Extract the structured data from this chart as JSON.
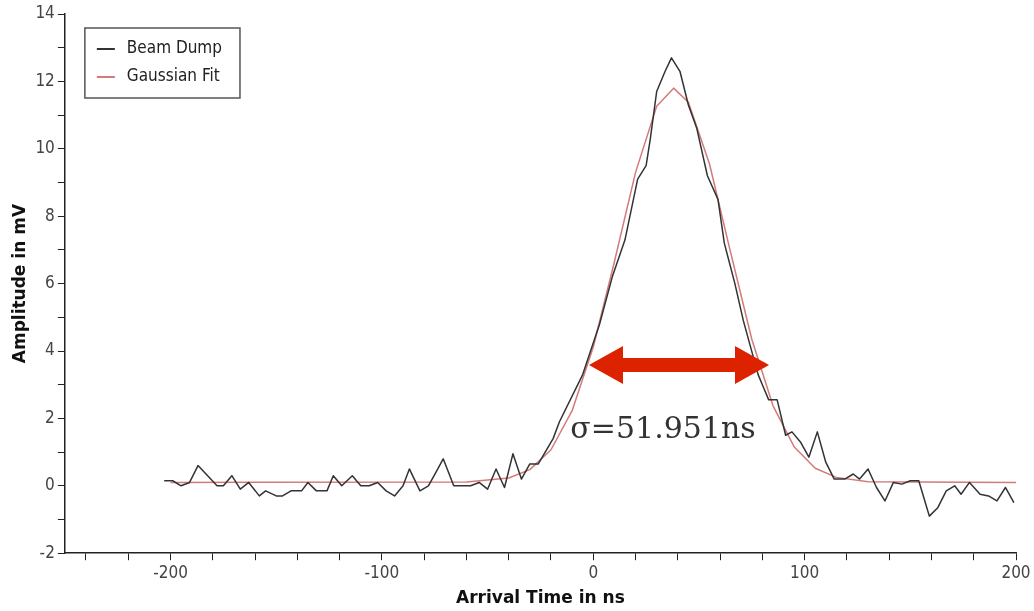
{
  "chart_data": {
    "type": "line",
    "xlabel": "Arrival Time in ns",
    "ylabel": "Amplitude in mV",
    "xlim": [
      -250,
      200
    ],
    "xticks": [
      {
        "value": -240,
        "label": null
      },
      {
        "value": -220,
        "label": null
      },
      -200,
      {
        "value": -180,
        "label": null
      },
      {
        "value": -160,
        "label": null
      },
      {
        "value": -140,
        "label": null
      },
      {
        "value": -120,
        "label": null
      },
      -100,
      {
        "value": -80,
        "label": null
      },
      {
        "value": -60,
        "label": null
      },
      {
        "value": -40,
        "label": null
      },
      {
        "value": -20,
        "label": null
      },
      0,
      {
        "value": 20,
        "label": null
      },
      {
        "value": 40,
        "label": null
      },
      {
        "value": 60,
        "label": null
      },
      {
        "value": 80,
        "label": null
      },
      100,
      {
        "value": 120,
        "label": null
      },
      {
        "value": 140,
        "label": null
      },
      {
        "value": 160,
        "label": null
      },
      {
        "value": 180,
        "label": null
      },
      200
    ],
    "ylim": [
      -2,
      14
    ],
    "yticks": [
      -2,
      {
        "value": -1,
        "label": null
      },
      0,
      {
        "value": 1,
        "label": null
      },
      2,
      {
        "value": 3,
        "label": null
      },
      4,
      {
        "value": 5,
        "label": null
      },
      6,
      {
        "value": 7,
        "label": null
      },
      8,
      {
        "value": 9,
        "label": null
      },
      10,
      {
        "value": 11,
        "label": null
      },
      12,
      {
        "value": 13,
        "label": null
      },
      14
    ],
    "grid": false,
    "legend": "top left",
    "marker": "none",
    "line_style": "solid",
    "series": [
      {
        "name": "Beam Dump",
        "color": "#333333",
        "x": [
          -203,
          -199,
          -195,
          -191,
          -187,
          -178,
          -175,
          -171,
          -167,
          -163,
          -158,
          -155,
          -150,
          -147,
          -143,
          -138,
          -135,
          -131,
          -126,
          -123,
          -119,
          -114,
          -110,
          -106,
          -102,
          -98,
          -94,
          -90,
          -87,
          -82,
          -78,
          -74,
          -71,
          -66,
          -58,
          -54,
          -50,
          -46,
          -42,
          -38,
          -34,
          -30,
          -26,
          -19,
          -16,
          -5,
          3,
          9,
          15,
          21,
          25,
          27,
          30,
          34,
          37,
          41,
          45,
          49,
          54,
          59,
          62,
          67,
          71,
          78,
          83,
          87,
          91,
          94,
          98,
          102,
          106,
          110,
          114,
          119,
          123,
          126,
          130,
          134,
          138,
          142,
          146,
          150,
          154,
          159,
          163,
          167,
          171,
          174,
          178,
          183,
          187,
          191,
          195,
          199
        ],
        "values": [
          0.15,
          0.15,
          0,
          0.1,
          0.6,
          0,
          0,
          0.3,
          -0.1,
          0.1,
          -0.3,
          -0.15,
          -0.3,
          -0.3,
          -0.15,
          -0.15,
          0.1,
          -0.15,
          -0.15,
          0.3,
          0,
          0.3,
          0,
          0,
          0.1,
          -0.15,
          -0.3,
          0,
          0.5,
          -0.15,
          0,
          0.45,
          0.8,
          0,
          0,
          0.1,
          -0.1,
          0.5,
          -0.05,
          0.95,
          0.2,
          0.65,
          0.65,
          1.4,
          1.9,
          3.3,
          4.8,
          6.2,
          7.3,
          9.1,
          9.5,
          10.3,
          11.7,
          12.3,
          12.7,
          12.3,
          11.3,
          10.6,
          9.2,
          8.5,
          7.2,
          6,
          4.9,
          3.3,
          2.55,
          2.55,
          1.5,
          1.6,
          1.3,
          0.85,
          1.6,
          0.7,
          0.2,
          0.2,
          0.35,
          0.2,
          0.5,
          -0.05,
          -0.45,
          0.1,
          0.05,
          0.15,
          0.15,
          -0.9,
          -0.65,
          -0.15,
          0,
          -0.25,
          0.1,
          -0.25,
          -0.3,
          -0.45,
          -0.05,
          -0.5
        ]
      },
      {
        "name": "Gaussian Fit",
        "color": "#d47a7a",
        "x": [
          -200,
          -60,
          -40,
          -30,
          -20,
          -10,
          0,
          10,
          20,
          30,
          38,
          45,
          55,
          65,
          75,
          85,
          95,
          105,
          115,
          130,
          200
        ],
        "values": [
          0.1,
          0.11,
          0.23,
          0.48,
          1.07,
          2.23,
          4.12,
          6.65,
          9.3,
          11.26,
          11.8,
          11.38,
          9.55,
          6.92,
          4.35,
          2.38,
          1.16,
          0.52,
          0.25,
          0.12,
          0.1
        ]
      }
    ],
    "annotations": [
      "σ=51.951ns"
    ]
  }
}
